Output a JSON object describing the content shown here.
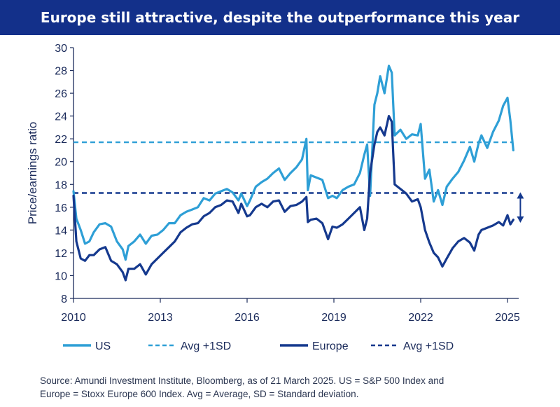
{
  "title": "Europe still attractive, despite the outperformance this year",
  "colors": {
    "title_bg": "#13308a",
    "us": "#2e9fd6",
    "europe": "#15398e",
    "axis": "#1a2a5a"
  },
  "chart_data": {
    "type": "line",
    "title": "Europe still attractive, despite the outperformance this year",
    "ylabel": "Price/earnings ratio",
    "xlabel": "",
    "xlim": [
      2010.0,
      2025.3
    ],
    "ylim": [
      8,
      30
    ],
    "xticks": [
      "2010",
      "2013",
      "2016",
      "2019",
      "2022",
      "2025"
    ],
    "xtick_values": [
      2010,
      2013,
      2016,
      2019,
      2022,
      2025
    ],
    "yticks": [
      "8",
      "10",
      "12",
      "14",
      "16",
      "18",
      "20",
      "22",
      "24",
      "26",
      "28",
      "30"
    ],
    "ytick_values": [
      8,
      10,
      12,
      14,
      16,
      18,
      20,
      22,
      24,
      26,
      28,
      30
    ],
    "grid": false,
    "legend_position": "bottom",
    "series": [
      {
        "name": "US",
        "style": "solid",
        "x": [
          2010.0,
          2010.1,
          2010.25,
          2010.4,
          2010.55,
          2010.7,
          2010.9,
          2011.1,
          2011.3,
          2011.5,
          2011.7,
          2011.8,
          2011.9,
          2012.1,
          2012.3,
          2012.5,
          2012.7,
          2012.9,
          2013.1,
          2013.3,
          2013.5,
          2013.7,
          2013.9,
          2014.1,
          2014.3,
          2014.5,
          2014.7,
          2014.9,
          2015.1,
          2015.3,
          2015.5,
          2015.7,
          2015.8,
          2016.0,
          2016.1,
          2016.3,
          2016.5,
          2016.7,
          2016.9,
          2017.1,
          2017.3,
          2017.5,
          2017.7,
          2017.9,
          2018.05,
          2018.1,
          2018.2,
          2018.4,
          2018.6,
          2018.8,
          2018.95,
          2019.1,
          2019.3,
          2019.5,
          2019.7,
          2019.9,
          2020.05,
          2020.15,
          2020.25,
          2020.4,
          2020.5,
          2020.6,
          2020.75,
          2020.9,
          2021.0,
          2021.1,
          2021.3,
          2021.5,
          2021.7,
          2021.9,
          2022.0,
          2022.15,
          2022.3,
          2022.45,
          2022.6,
          2022.75,
          2022.9,
          2023.1,
          2023.3,
          2023.5,
          2023.7,
          2023.85,
          2024.0,
          2024.1,
          2024.3,
          2024.5,
          2024.7,
          2024.85,
          2025.0,
          2025.1,
          2025.2
        ],
        "values": [
          17.4,
          15.0,
          14.0,
          12.8,
          13.0,
          13.8,
          14.5,
          14.6,
          14.3,
          13.0,
          12.3,
          11.4,
          12.6,
          13.0,
          13.6,
          12.8,
          13.5,
          13.6,
          14.0,
          14.6,
          14.6,
          15.3,
          15.6,
          15.8,
          16.0,
          16.8,
          16.6,
          17.2,
          17.4,
          17.6,
          17.3,
          16.6,
          17.2,
          16.1,
          16.6,
          17.8,
          18.2,
          18.5,
          19.0,
          19.4,
          18.4,
          19.0,
          19.5,
          20.2,
          22.0,
          17.5,
          18.8,
          18.6,
          18.4,
          16.8,
          17.0,
          16.8,
          17.5,
          17.8,
          18.0,
          19.0,
          20.6,
          21.5,
          17.0,
          25.0,
          26.0,
          27.5,
          26.0,
          28.4,
          27.8,
          22.3,
          22.8,
          22.0,
          22.4,
          22.3,
          23.3,
          18.5,
          19.3,
          16.5,
          17.5,
          16.2,
          17.8,
          18.5,
          19.1,
          20.1,
          21.3,
          20.0,
          21.6,
          22.3,
          21.2,
          22.6,
          23.6,
          24.9,
          25.6,
          23.6,
          21.0
        ]
      },
      {
        "name": "Avg +1SD",
        "style": "dashed",
        "x": [
          2010.0,
          2025.2
        ],
        "values": [
          21.7,
          21.7
        ]
      },
      {
        "name": "Europe",
        "style": "solid",
        "x": [
          2010.0,
          2010.1,
          2010.25,
          2010.4,
          2010.55,
          2010.7,
          2010.9,
          2011.1,
          2011.3,
          2011.5,
          2011.7,
          2011.8,
          2011.9,
          2012.1,
          2012.3,
          2012.5,
          2012.7,
          2012.9,
          2013.1,
          2013.3,
          2013.5,
          2013.7,
          2013.9,
          2014.1,
          2014.3,
          2014.5,
          2014.7,
          2014.9,
          2015.1,
          2015.3,
          2015.5,
          2015.7,
          2015.8,
          2016.0,
          2016.1,
          2016.3,
          2016.5,
          2016.7,
          2016.9,
          2017.1,
          2017.3,
          2017.5,
          2017.7,
          2017.9,
          2018.05,
          2018.1,
          2018.2,
          2018.4,
          2018.6,
          2018.8,
          2018.95,
          2019.1,
          2019.3,
          2019.5,
          2019.7,
          2019.9,
          2020.05,
          2020.15,
          2020.25,
          2020.4,
          2020.5,
          2020.6,
          2020.75,
          2020.9,
          2021.0,
          2021.1,
          2021.3,
          2021.5,
          2021.7,
          2021.9,
          2022.0,
          2022.15,
          2022.3,
          2022.45,
          2022.6,
          2022.75,
          2022.9,
          2023.1,
          2023.3,
          2023.5,
          2023.7,
          2023.85,
          2024.0,
          2024.1,
          2024.3,
          2024.5,
          2024.7,
          2024.85,
          2025.0,
          2025.1,
          2025.2
        ],
        "values": [
          17.0,
          13.0,
          11.5,
          11.3,
          11.8,
          11.8,
          12.3,
          12.5,
          11.3,
          11.0,
          10.3,
          9.6,
          10.6,
          10.6,
          11.0,
          10.1,
          11.0,
          11.5,
          12.0,
          12.5,
          13.0,
          13.8,
          14.2,
          14.5,
          14.6,
          15.2,
          15.5,
          16.0,
          16.2,
          16.6,
          16.5,
          15.5,
          16.3,
          15.2,
          15.3,
          16.0,
          16.3,
          16.0,
          16.5,
          16.6,
          15.6,
          16.1,
          16.2,
          16.5,
          16.9,
          14.7,
          14.9,
          15.0,
          14.6,
          13.2,
          14.3,
          14.2,
          14.5,
          15.0,
          15.5,
          16.0,
          14.0,
          15.0,
          19.0,
          21.5,
          22.6,
          23.0,
          22.3,
          24.0,
          23.5,
          18.0,
          17.6,
          17.2,
          16.5,
          16.7,
          16.0,
          14.0,
          12.9,
          12.0,
          11.6,
          10.8,
          11.5,
          12.4,
          13.0,
          13.3,
          12.9,
          12.2,
          13.6,
          14.0,
          14.2,
          14.4,
          14.7,
          14.4,
          15.3,
          14.5,
          14.9
        ]
      },
      {
        "name": "Avg +1SD",
        "style": "dashed",
        "x": [
          2010.0,
          2025.2
        ],
        "values": [
          17.25,
          17.25
        ]
      }
    ],
    "annotations": [
      {
        "type": "double-arrow",
        "x": 2025.3,
        "from": 17.25,
        "to": 14.7
      }
    ]
  },
  "legend": [
    {
      "label": "US",
      "style": "solid",
      "color": "#2e9fd6"
    },
    {
      "label": "Avg +1SD",
      "style": "dashed",
      "color": "#2e9fd6"
    },
    {
      "label": "Europe",
      "style": "solid",
      "color": "#15398e"
    },
    {
      "label": "Avg +1SD",
      "style": "dashed",
      "color": "#15398e"
    }
  ],
  "source": {
    "line1": "Source: Amundi Investment Institute, Bloomberg, as of 21 March 2025. US = S&P 500 Index and",
    "line2": "Europe = Stoxx Europe 600 Index. Avg = Average, SD = Standard deviation."
  }
}
